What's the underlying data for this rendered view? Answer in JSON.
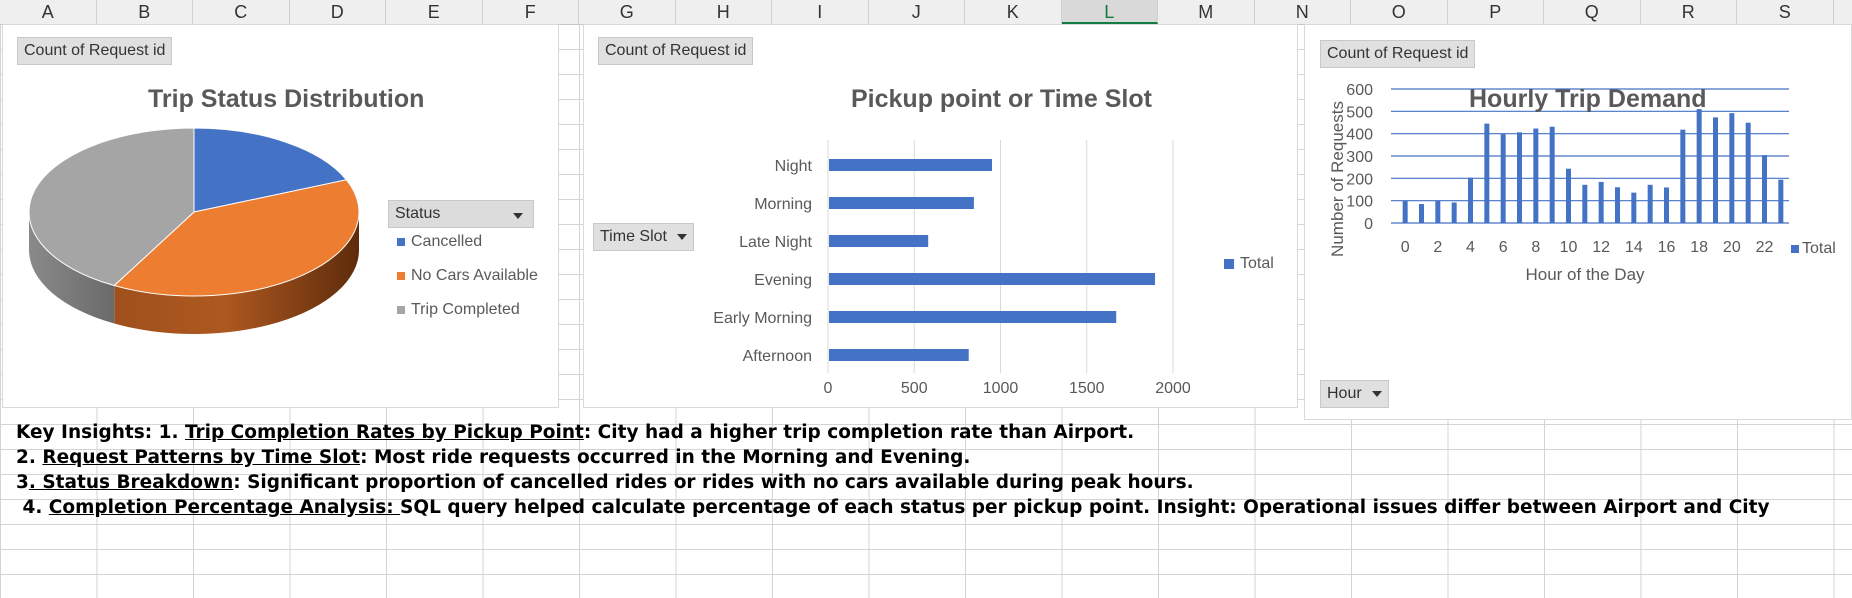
{
  "columns": [
    "A",
    "B",
    "C",
    "D",
    "E",
    "F",
    "G",
    "H",
    "I",
    "J",
    "K",
    "L",
    "M",
    "N",
    "O",
    "P",
    "Q",
    "R",
    "S"
  ],
  "active_column": "L",
  "pie_panel": {
    "field_label": "Count of Request id",
    "title": "Trip Status Distribution",
    "filter_label": "Status",
    "legend": [
      "Cancelled",
      "No Cars Available",
      "Trip Completed"
    ]
  },
  "bar_panel": {
    "field_label": "Count of Request id",
    "title": "Pickup point or Time Slot",
    "filter_label": "Time Slot",
    "legend": "Total"
  },
  "col_panel": {
    "field_label": "Count of Request id",
    "title": "Hourly Trip Demand",
    "ylabel": "Number of Requests",
    "xlabel": "Hour of the Day",
    "legend": "Total",
    "filter_label": "Hour"
  },
  "colors": {
    "blue": "#4472c4",
    "orange": "#ed7d31",
    "gray": "#a5a5a5"
  },
  "chart_data": [
    {
      "type": "pie",
      "title": "Trip Status Distribution",
      "categories": [
        "Cancelled",
        "No Cars Available",
        "Trip Completed"
      ],
      "values": [
        1264,
        2650,
        2831
      ],
      "colors": [
        "#4472c4",
        "#ed7d31",
        "#a5a5a5"
      ]
    },
    {
      "type": "bar",
      "title": "Pickup point or Time Slot",
      "categories": [
        "Night",
        "Morning",
        "Late Night",
        "Evening",
        "Early Morning",
        "Afternoon"
      ],
      "series": [
        {
          "name": "Total",
          "values": [
            945,
            840,
            575,
            1890,
            1665,
            810
          ]
        }
      ],
      "xlim": [
        0,
        2000
      ],
      "xticks": [
        "0",
        "500",
        "1000",
        "1500",
        "2000"
      ]
    },
    {
      "type": "bar",
      "title": "Hourly Trip Demand",
      "xlabel": "Hour of the Day",
      "ylabel": "Number of Requests",
      "categories": [
        0,
        1,
        2,
        3,
        4,
        5,
        6,
        7,
        8,
        9,
        10,
        11,
        12,
        13,
        14,
        15,
        16,
        17,
        18,
        19,
        20,
        21,
        22,
        23
      ],
      "series": [
        {
          "name": "Total",
          "values": [
            99,
            85,
            99,
            92,
            203,
            445,
            398,
            406,
            423,
            431,
            243,
            171,
            184,
            160,
            136,
            171,
            159,
            418,
            510,
            473,
            492,
            449,
            304,
            194
          ]
        }
      ],
      "ylim": [
        0,
        600
      ],
      "yticks": [
        "0",
        "100",
        "200",
        "300",
        "400",
        "500",
        "600"
      ],
      "xticks": [
        "0",
        "2",
        "4",
        "6",
        "8",
        "10",
        "12",
        "14",
        "16",
        "18",
        "20",
        "22"
      ]
    }
  ],
  "insights": {
    "line1": {
      "lead": "Key Insights:",
      "pre": " 1. ",
      "title": "Trip Completion Rates by Pickup Point",
      "text": ": City had a higher trip completion rate than Airport."
    },
    "line2": {
      "pre": "2. ",
      "title": "Request Patterns by Time Slot",
      "text": ": Most ride requests occurred in the Morning and Evening."
    },
    "line3": {
      "pre": "3",
      "title": ". Status Breakdown",
      "text": ": Significant proportion of cancelled rides or rides with no cars available during peak hours."
    },
    "line4": {
      "pre": " 4. ",
      "title": "Completion Percentage Analysis: ",
      "text": "SQL query helped calculate percentage of each status per pickup point. Insight: Operational issues differ between Airport and City"
    }
  }
}
